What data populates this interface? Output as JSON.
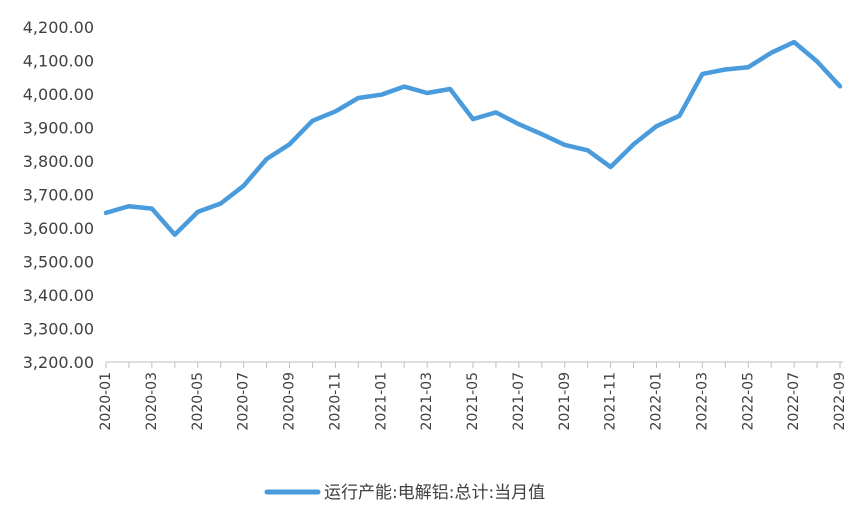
{
  "chart_data": {
    "type": "line",
    "x": [
      "2020-01",
      "2020-02",
      "2020-03",
      "2020-04",
      "2020-05",
      "2020-06",
      "2020-07",
      "2020-08",
      "2020-09",
      "2020-10",
      "2020-11",
      "2020-12",
      "2021-01",
      "2021-02",
      "2021-03",
      "2021-04",
      "2021-05",
      "2021-06",
      "2021-07",
      "2021-08",
      "2021-09",
      "2021-10",
      "2021-11",
      "2021-12",
      "2022-01",
      "2022-02",
      "2022-03",
      "2022-04",
      "2022-05",
      "2022-06",
      "2022-07",
      "2022-08",
      "2022-09"
    ],
    "xtick_labels": [
      "2020-01",
      "2020-03",
      "2020-05",
      "2020-07",
      "2020-09",
      "2020-11",
      "2021-01",
      "2021-03",
      "2021-05",
      "2021-07",
      "2021-09",
      "2021-11",
      "2022-01",
      "2022-03",
      "2022-05",
      "2022-07",
      "2022-09"
    ],
    "series": [
      {
        "name": "运行产能:电解铝:总计:当月值",
        "color": "#4a9bdc",
        "values": [
          3645,
          3665,
          3658,
          3580,
          3648,
          3673,
          3726,
          3806,
          3850,
          3920,
          3948,
          3988,
          3998,
          4022,
          4003,
          4015,
          3925,
          3945,
          3910,
          3880,
          3848,
          3832,
          3782,
          3850,
          3904,
          3935,
          4060,
          4073,
          4080,
          4123,
          4155,
          4097,
          4023
        ]
      }
    ],
    "ylim": [
      3200,
      4200
    ],
    "yticks": [
      "4,200.00",
      "4,100.00",
      "4,000.00",
      "3,900.00",
      "3,800.00",
      "3,700.00",
      "3,600.00",
      "3,500.00",
      "3,400.00",
      "3,300.00",
      "3,200.00"
    ],
    "ytick_values": [
      4200,
      4100,
      4000,
      3900,
      3800,
      3700,
      3600,
      3500,
      3400,
      3300,
      3200
    ],
    "grid": false,
    "legend": "bottom-center",
    "title": "",
    "xlabel": "",
    "ylabel": ""
  }
}
